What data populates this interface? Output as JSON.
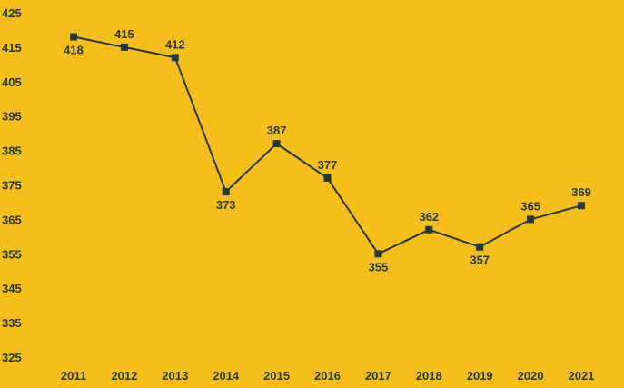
{
  "chart_data": {
    "type": "line",
    "title": "",
    "xlabel": "",
    "ylabel": "",
    "categories": [
      "2011",
      "2012",
      "2013",
      "2014",
      "2015",
      "2016",
      "2017",
      "2018",
      "2019",
      "2020",
      "2021"
    ],
    "series": [
      {
        "values": [
          418,
          415,
          412,
          373,
          387,
          377,
          355,
          362,
          357,
          365,
          369
        ]
      }
    ],
    "data_labels": [
      "418",
      "415",
      "412",
      "373",
      "387",
      "377",
      "355",
      "362",
      "357",
      "365",
      "369"
    ],
    "ylim": [
      325,
      425
    ],
    "yticks": [
      "425",
      "415",
      "405",
      "395",
      "385",
      "375",
      "365",
      "355",
      "345",
      "335",
      "325"
    ],
    "grid": false,
    "legend": "none",
    "colors": {
      "background": "#F6BE1A",
      "line": "#1E3A3F",
      "marker": "#1E3A3F",
      "text": "#1E3A3F"
    },
    "marker": "square"
  }
}
